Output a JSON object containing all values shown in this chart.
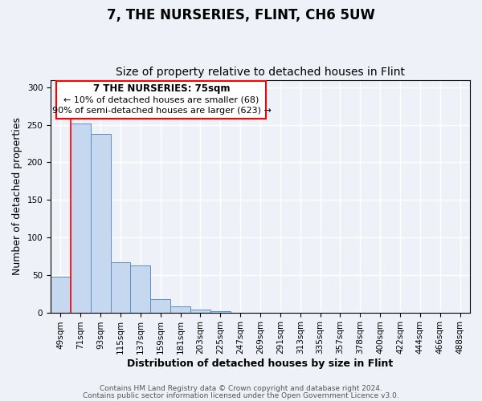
{
  "title": "7, THE NURSERIES, FLINT, CH6 5UW",
  "subtitle": "Size of property relative to detached houses in Flint",
  "xlabel": "Distribution of detached houses by size in Flint",
  "ylabel": "Number of detached properties",
  "bar_labels": [
    "49sqm",
    "71sqm",
    "93sqm",
    "115sqm",
    "137sqm",
    "159sqm",
    "181sqm",
    "203sqm",
    "225sqm",
    "247sqm",
    "269sqm",
    "291sqm",
    "313sqm",
    "335sqm",
    "357sqm",
    "378sqm",
    "400sqm",
    "422sqm",
    "444sqm",
    "466sqm",
    "488sqm"
  ],
  "bar_heights": [
    48,
    252,
    238,
    67,
    63,
    18,
    8,
    4,
    2,
    0,
    0,
    0,
    0,
    0,
    0,
    0,
    0,
    0,
    0,
    0,
    0
  ],
  "bar_color": "#c5d8f0",
  "bar_edge_color": "#5a8fc2",
  "red_line_x": 1,
  "annotation_title": "7 THE NURSERIES: 75sqm",
  "annotation_line1": "← 10% of detached houses are smaller (68)",
  "annotation_line2": "90% of semi-detached houses are larger (623) →",
  "ylim": [
    0,
    310
  ],
  "yticks": [
    0,
    50,
    100,
    150,
    200,
    250,
    300
  ],
  "footer1": "Contains HM Land Registry data © Crown copyright and database right 2024.",
  "footer2": "Contains public sector information licensed under the Open Government Licence v3.0.",
  "background_color": "#eef2f8",
  "plot_bg_color": "#eef2f8",
  "grid_color": "#ffffff",
  "title_fontsize": 12,
  "subtitle_fontsize": 10,
  "axis_label_fontsize": 9,
  "tick_fontsize": 7.5,
  "footer_fontsize": 6.5
}
